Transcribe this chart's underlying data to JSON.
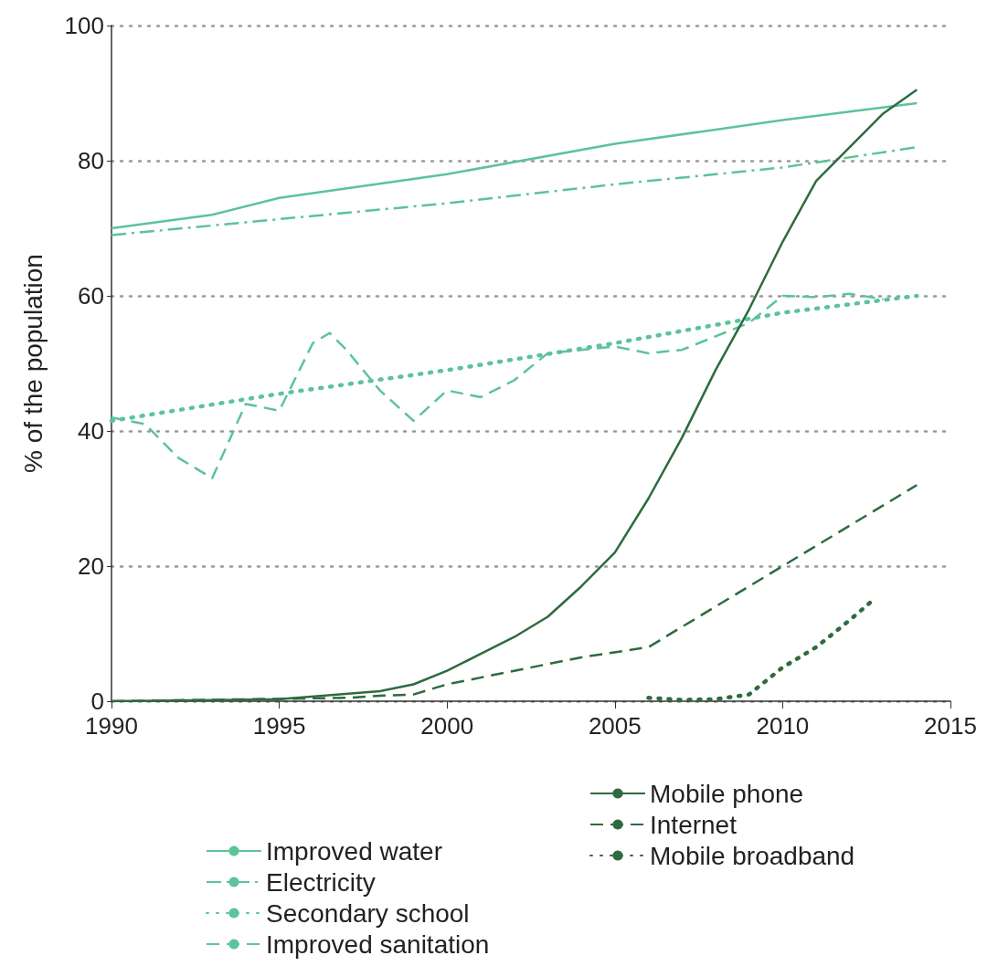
{
  "chart_data": {
    "type": "line",
    "ylabel": "% of the population",
    "xlim": [
      1990,
      2015
    ],
    "xticks": [
      1990,
      1995,
      2000,
      2005,
      2010,
      2015
    ],
    "ylim": [
      0,
      100
    ],
    "yticks": [
      0,
      20,
      40,
      60,
      80,
      100
    ],
    "grid": "y",
    "legend": "bottom",
    "marker": "none",
    "series": [
      {
        "name": "Improved water",
        "color": "#5cc39a",
        "line_style": "solid",
        "x": [
          1990,
          1993,
          1995,
          2000,
          2005,
          2010,
          2014
        ],
        "values": [
          70,
          72,
          74.5,
          78,
          82.5,
          86,
          88.5
        ]
      },
      {
        "name": "Electricity",
        "color": "#5cc39a",
        "line_style": "dashdot",
        "x": [
          1990,
          2000,
          2005,
          2010,
          2014
        ],
        "values": [
          69,
          73.7,
          76.5,
          79,
          82
        ]
      },
      {
        "name": "Secondary school",
        "color": "#5cc39a",
        "line_style": "dotted",
        "x": [
          1990,
          1995,
          2000,
          2005,
          2010,
          2014
        ],
        "values": [
          41.5,
          45.5,
          49,
          53,
          57.5,
          60
        ]
      },
      {
        "name": "Improved sanitation",
        "color": "#5cc39a",
        "line_style": "dashed",
        "x": [
          1990,
          1991,
          1992,
          1993,
          1994,
          1995,
          1996,
          1996.5,
          1997,
          1998,
          1999,
          2000,
          2001,
          2002,
          2003,
          2004,
          2005,
          2006,
          2007,
          2008,
          2009,
          2010,
          2011,
          2012,
          2013
        ],
        "values": [
          42,
          41,
          36,
          33,
          44,
          43,
          53,
          54.5,
          52,
          46,
          41.5,
          46,
          45,
          47.5,
          51.5,
          52,
          52.5,
          51.5,
          52,
          54,
          56,
          60,
          59.8,
          60.3,
          59.5
        ]
      },
      {
        "name": "Mobile phone",
        "color": "#2e6b3e",
        "line_style": "solid",
        "x": [
          1990,
          1995,
          1998,
          1999,
          2000,
          2001,
          2002,
          2003,
          2004,
          2005,
          2006,
          2007,
          2008,
          2009,
          2010,
          2011,
          2012,
          2013,
          2014
        ],
        "values": [
          0,
          0.3,
          1.5,
          2.5,
          4.5,
          7,
          9.5,
          12.5,
          17,
          22,
          30,
          39,
          49,
          58,
          68,
          77,
          82,
          87,
          90.5
        ]
      },
      {
        "name": "Internet",
        "color": "#2e6b3e",
        "line_style": "dashed",
        "x": [
          1990,
          1997,
          1998,
          1999,
          2000,
          2002,
          2004,
          2006,
          2008,
          2010,
          2012,
          2014
        ],
        "values": [
          0,
          0.5,
          0.8,
          1,
          2.5,
          4.5,
          6.5,
          8,
          14,
          20,
          26,
          32
        ]
      },
      {
        "name": "Mobile broadband",
        "color": "#2e6b3e",
        "line_style": "dotted",
        "x": [
          2006,
          2007,
          2008,
          2009,
          2010,
          2011,
          2012,
          2012.7
        ],
        "values": [
          0.5,
          0.2,
          0.3,
          1,
          5,
          8,
          12,
          15
        ]
      }
    ]
  }
}
